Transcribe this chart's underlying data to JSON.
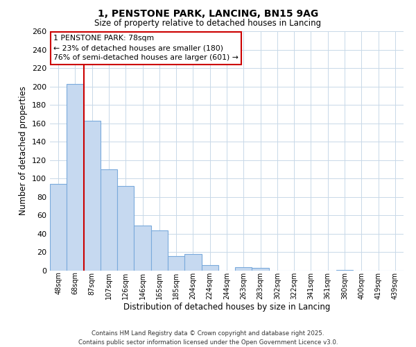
{
  "title": "1, PENSTONE PARK, LANCING, BN15 9AG",
  "subtitle": "Size of property relative to detached houses in Lancing",
  "xlabel": "Distribution of detached houses by size in Lancing",
  "ylabel": "Number of detached properties",
  "bar_labels": [
    "48sqm",
    "68sqm",
    "87sqm",
    "107sqm",
    "126sqm",
    "146sqm",
    "165sqm",
    "185sqm",
    "204sqm",
    "224sqm",
    "244sqm",
    "263sqm",
    "283sqm",
    "302sqm",
    "322sqm",
    "341sqm",
    "361sqm",
    "380sqm",
    "400sqm",
    "419sqm",
    "439sqm"
  ],
  "bar_values": [
    94,
    203,
    163,
    110,
    92,
    49,
    44,
    16,
    18,
    6,
    0,
    4,
    3,
    0,
    0,
    0,
    0,
    1,
    0,
    0,
    0
  ],
  "bar_color": "#c6d9f0",
  "bar_edge_color": "#7aaadc",
  "highlight_line_color": "#cc0000",
  "annotation_title": "1 PENSTONE PARK: 78sqm",
  "annotation_line1": "← 23% of detached houses are smaller (180)",
  "annotation_line2": "76% of semi-detached houses are larger (601) →",
  "annotation_box_color": "#ffffff",
  "annotation_box_edge": "#cc0000",
  "ylim": [
    0,
    260
  ],
  "yticks": [
    0,
    20,
    40,
    60,
    80,
    100,
    120,
    140,
    160,
    180,
    200,
    220,
    240,
    260
  ],
  "footer_line1": "Contains HM Land Registry data © Crown copyright and database right 2025.",
  "footer_line2": "Contains public sector information licensed under the Open Government Licence v3.0.",
  "background_color": "#ffffff",
  "grid_color": "#c8d8e8"
}
